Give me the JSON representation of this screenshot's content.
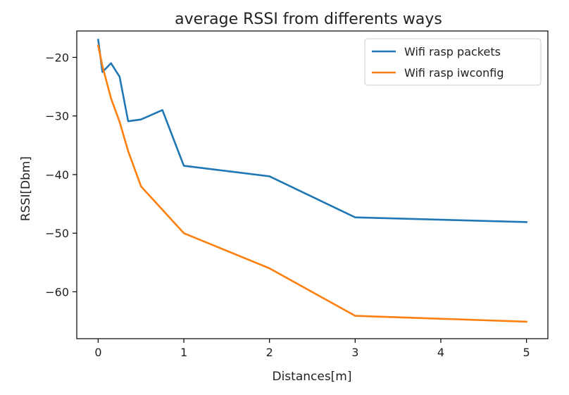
{
  "chart_data": {
    "type": "line",
    "title": "average RSSI from differents ways",
    "xlabel": "Distances[m]",
    "ylabel": "RSSI[Dbm]",
    "xlim": [
      -0.25,
      5.25
    ],
    "ylim": [
      -68,
      -15.5
    ],
    "xticks": [
      0,
      1,
      2,
      3,
      4,
      5
    ],
    "xtick_labels": [
      "0",
      "1",
      "2",
      "3",
      "4",
      "5"
    ],
    "yticks": [
      -60,
      -50,
      -40,
      -30,
      -20
    ],
    "ytick_labels": [
      "−60",
      "−50",
      "−40",
      "−30",
      "−20"
    ],
    "grid": false,
    "legend_position": "top-right",
    "series": [
      {
        "name": "Wifi rasp packets",
        "color": "#1f77b4",
        "x": [
          0,
          0.05,
          0.15,
          0.25,
          0.35,
          0.5,
          0.75,
          1,
          2,
          3,
          5
        ],
        "y": [
          -17,
          -22.5,
          -21,
          -23.3,
          -30.9,
          -30.6,
          -29,
          -38.5,
          -40.3,
          -47.3,
          -48.1
        ]
      },
      {
        "name": "Wifi rasp iwconfig",
        "color": "#ff7f0e",
        "x": [
          0,
          0.05,
          0.15,
          0.25,
          0.35,
          0.5,
          1,
          2,
          3,
          5
        ],
        "y": [
          -18,
          -21.5,
          -27,
          -31,
          -36,
          -42,
          -50,
          -56,
          -64.1,
          -65.1
        ]
      }
    ]
  }
}
